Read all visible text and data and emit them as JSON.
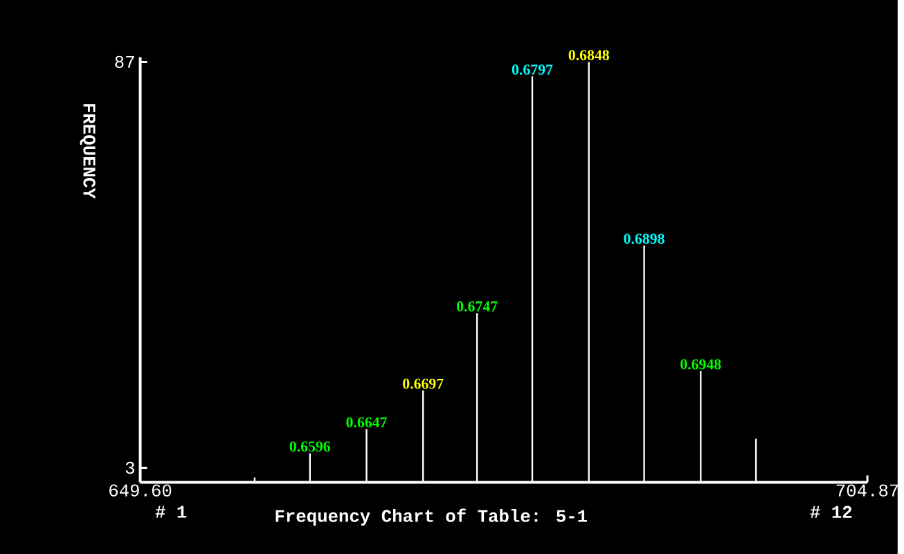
{
  "chart_data": {
    "type": "bar",
    "title": "Frequency Chart of Table: 5-1",
    "ylabel": "FREQUENCY",
    "x": [
      658.3,
      662.5,
      666.8,
      671.1,
      675.2,
      679.4,
      683.7,
      687.9,
      692.2,
      696.4
    ],
    "values": [
      1,
      6,
      11,
      19,
      35,
      84,
      87,
      49,
      23,
      9
    ],
    "color": "#ffffff",
    "xlim": [
      649.6,
      704.87
    ],
    "xticks": [
      {
        "value": 649.6,
        "label": "649.60"
      },
      {
        "value": 704.87,
        "label": "704.87"
      }
    ],
    "ylim": [
      0,
      88
    ],
    "yticks": [
      3,
      87
    ],
    "annotations": [
      "# 1",
      "# 12",
      {
        "text": "0.6596",
        "x": 662.5,
        "y": 6
      },
      {
        "text": "0.6647",
        "x": 666.8,
        "y": 11
      },
      {
        "text": "0.6697",
        "x": 671.1,
        "y": 19
      },
      {
        "text": "0.6747",
        "x": 675.2,
        "y": 35
      },
      {
        "text": "0.6797",
        "x": 679.4,
        "y": 84
      },
      {
        "text": "0.6848",
        "x": 683.7,
        "y": 87
      },
      {
        "text": "0.6898",
        "x": 687.9,
        "y": 49
      },
      {
        "text": "0.6948",
        "x": 692.2,
        "y": 23
      }
    ]
  }
}
